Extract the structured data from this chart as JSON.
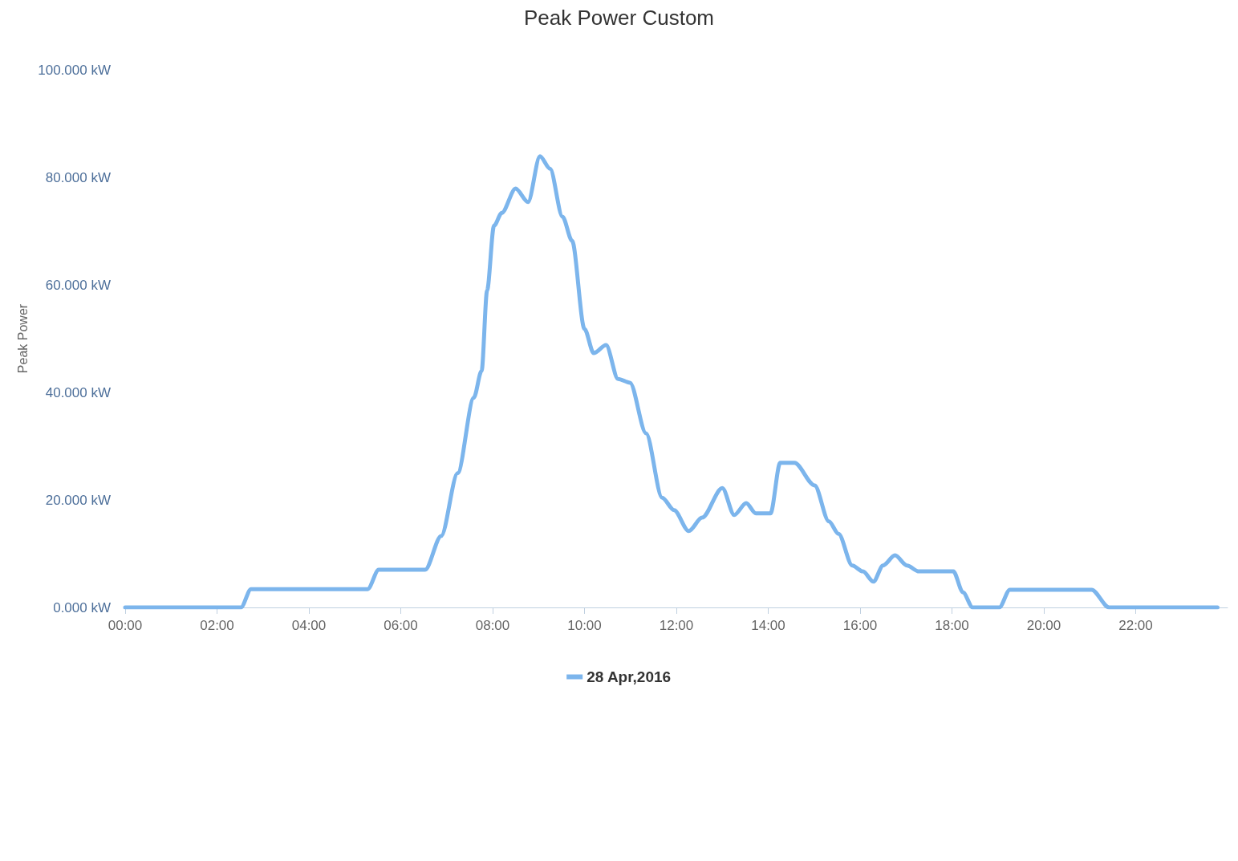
{
  "chart_data": {
    "type": "line",
    "title": "Peak Power Custom",
    "ylabel": "Peak Power",
    "x": [
      0,
      2.52,
      2.74,
      5.28,
      5.52,
      6.53,
      6.88,
      7.24,
      7.59,
      7.76,
      7.88,
      8.03,
      8.2,
      8.5,
      8.77,
      9.03,
      9.25,
      9.52,
      9.73,
      10.0,
      10.2,
      10.47,
      10.73,
      10.99,
      11.34,
      11.69,
      11.95,
      12.27,
      12.56,
      13.0,
      13.26,
      13.52,
      13.73,
      14.05,
      14.26,
      14.57,
      15.01,
      15.32,
      15.53,
      15.83,
      16.06,
      16.29,
      16.5,
      16.76,
      17.02,
      17.28,
      18.03,
      18.24,
      18.45,
      19.03,
      19.26,
      20.0,
      21.04,
      21.42,
      23.78
    ],
    "series": [
      {
        "name": "28 Apr,2016",
        "color": "#7cb5ec",
        "values": [
          0,
          0,
          3.4,
          3.4,
          7.0,
          7.0,
          13.3,
          25,
          39,
          44,
          59,
          71,
          73.4,
          77.9,
          75.4,
          83.9,
          81.6,
          72.7,
          68.2,
          51.8,
          47.3,
          48.8,
          42.5,
          41.8,
          32.4,
          20.4,
          18.1,
          14.2,
          16.7,
          22.2,
          17.2,
          19.4,
          17.5,
          17.5,
          26.9,
          26.9,
          22.7,
          16.0,
          13.7,
          7.8,
          6.7,
          4.8,
          7.8,
          9.7,
          7.8,
          6.7,
          6.7,
          2.8,
          0,
          0,
          3.3,
          3.3,
          3.3,
          0,
          0
        ]
      }
    ],
    "xlim": [
      0,
      24
    ],
    "xticks": [
      {
        "value": 0,
        "label": "00:00"
      },
      {
        "value": 2,
        "label": "02:00"
      },
      {
        "value": 4,
        "label": "04:00"
      },
      {
        "value": 6,
        "label": "06:00"
      },
      {
        "value": 8,
        "label": "08:00"
      },
      {
        "value": 10,
        "label": "10:00"
      },
      {
        "value": 12,
        "label": "12:00"
      },
      {
        "value": 14,
        "label": "14:00"
      },
      {
        "value": 16,
        "label": "16:00"
      },
      {
        "value": 18,
        "label": "18:00"
      },
      {
        "value": 20,
        "label": "20:00"
      },
      {
        "value": 22,
        "label": "22:00"
      }
    ],
    "ylim": [
      0,
      100
    ],
    "yticks": [
      {
        "value": 0,
        "label": "0.000 kW"
      },
      {
        "value": 20,
        "label": "20.000 kW"
      },
      {
        "value": 40,
        "label": "40.000 kW"
      },
      {
        "value": 60,
        "label": "60.000 kW"
      },
      {
        "value": 80,
        "label": "80.000 kW"
      },
      {
        "value": 100,
        "label": "100.000 kW"
      }
    ],
    "grid": false,
    "legend": "bottom",
    "marker": "none",
    "line_style": "solid"
  }
}
